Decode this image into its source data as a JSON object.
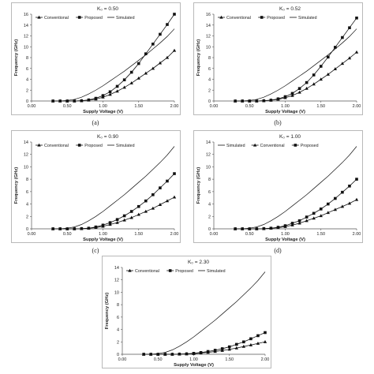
{
  "chart_data": [
    {
      "type": "line",
      "title": "K₀ = 0.50",
      "caption": "(a)",
      "xlabel": "Supply Voltage (V)",
      "ylabel": "Frequency (GHz)",
      "xlim": [
        0,
        2
      ],
      "ylim": [
        0,
        16
      ],
      "xticks": [
        "0.00",
        "0.50",
        "1.00",
        "1.50",
        "2.00"
      ],
      "yticks": [
        "0",
        "2",
        "4",
        "6",
        "8",
        "10",
        "12",
        "14",
        "16"
      ],
      "legend_position": "top-left",
      "series": [
        {
          "name": "Conventional",
          "marker": "triangle",
          "x": [
            0.3,
            0.4,
            0.5,
            0.6,
            0.7,
            0.8,
            0.9,
            1.0,
            1.1,
            1.2,
            1.3,
            1.4,
            1.5,
            1.6,
            1.7,
            1.8,
            1.9,
            2.0
          ],
          "y": [
            0,
            0,
            0,
            0,
            0.05,
            0.15,
            0.35,
            0.7,
            1.2,
            1.8,
            2.5,
            3.3,
            4.2,
            5.1,
            6.0,
            7.0,
            8.0,
            9.3
          ]
        },
        {
          "name": "Proposed",
          "marker": "square",
          "x": [
            0.3,
            0.4,
            0.5,
            0.6,
            0.7,
            0.8,
            0.9,
            1.0,
            1.1,
            1.2,
            1.3,
            1.4,
            1.5,
            1.6,
            1.7,
            1.8,
            1.9,
            2.0
          ],
          "y": [
            0,
            0,
            0,
            0,
            0.05,
            0.2,
            0.5,
            1.0,
            1.7,
            2.7,
            3.9,
            5.3,
            6.9,
            8.7,
            10.5,
            12.3,
            14.1,
            16.0
          ]
        },
        {
          "name": "Simulated",
          "marker": "none",
          "x": [
            0.3,
            0.4,
            0.5,
            0.6,
            0.7,
            0.8,
            0.9,
            1.0,
            1.1,
            1.2,
            1.3,
            1.4,
            1.5,
            1.6,
            1.7,
            1.8,
            1.9,
            2.0
          ],
          "y": [
            0,
            0,
            0.1,
            0.3,
            0.7,
            1.3,
            2.0,
            2.8,
            3.7,
            4.6,
            5.5,
            6.5,
            7.5,
            8.5,
            9.6,
            10.7,
            11.9,
            13.3
          ]
        }
      ]
    },
    {
      "type": "line",
      "title": "K₀ = 0.52",
      "caption": "(b)",
      "xlabel": "Supply Voltage (V)",
      "ylabel": "Frequency (GHz)",
      "xlim": [
        0,
        2
      ],
      "ylim": [
        0,
        16
      ],
      "xticks": [
        "0.00",
        "0.50",
        "1.00",
        "1.50",
        "2.00"
      ],
      "yticks": [
        "0",
        "2",
        "4",
        "6",
        "8",
        "10",
        "12",
        "14",
        "16"
      ],
      "legend_position": "top-left",
      "series": [
        {
          "name": "Conventional",
          "marker": "triangle",
          "x": [
            0.3,
            0.4,
            0.5,
            0.6,
            0.7,
            0.8,
            0.9,
            1.0,
            1.1,
            1.2,
            1.3,
            1.4,
            1.5,
            1.6,
            1.7,
            1.8,
            1.9,
            2.0
          ],
          "y": [
            0,
            0,
            0,
            0,
            0.05,
            0.15,
            0.3,
            0.6,
            1.0,
            1.6,
            2.3,
            3.1,
            4.0,
            4.9,
            5.9,
            6.9,
            7.9,
            9.0
          ]
        },
        {
          "name": "Proposed",
          "marker": "square",
          "x": [
            0.3,
            0.4,
            0.5,
            0.6,
            0.7,
            0.8,
            0.9,
            1.0,
            1.1,
            1.2,
            1.3,
            1.4,
            1.5,
            1.6,
            1.7,
            1.8,
            1.9,
            2.0
          ],
          "y": [
            0,
            0,
            0,
            0,
            0.05,
            0.15,
            0.4,
            0.8,
            1.4,
            2.3,
            3.4,
            4.8,
            6.4,
            8.1,
            9.9,
            11.7,
            13.5,
            15.3
          ]
        },
        {
          "name": "Simulated",
          "marker": "none",
          "x": [
            0.3,
            0.4,
            0.5,
            0.6,
            0.7,
            0.8,
            0.9,
            1.0,
            1.1,
            1.2,
            1.3,
            1.4,
            1.5,
            1.6,
            1.7,
            1.8,
            1.9,
            2.0
          ],
          "y": [
            0,
            0,
            0.1,
            0.3,
            0.7,
            1.3,
            2.0,
            2.8,
            3.7,
            4.6,
            5.5,
            6.5,
            7.5,
            8.5,
            9.6,
            10.7,
            11.9,
            13.3
          ]
        }
      ]
    },
    {
      "type": "line",
      "title": "K₀ = 0.90",
      "caption": "(c)",
      "xlabel": "Supply Voltage (V)",
      "ylabel": "Frequency (GHz)",
      "xlim": [
        0,
        2
      ],
      "ylim": [
        0,
        14
      ],
      "xticks": [
        "0.00",
        "0.50",
        "1.00",
        "1.50",
        "2.00"
      ],
      "yticks": [
        "0",
        "2",
        "4",
        "6",
        "8",
        "10",
        "12",
        "14"
      ],
      "legend_position": "top-left",
      "series": [
        {
          "name": "Conventional",
          "marker": "triangle",
          "x": [
            0.3,
            0.4,
            0.5,
            0.6,
            0.7,
            0.8,
            0.9,
            1.0,
            1.1,
            1.2,
            1.3,
            1.4,
            1.5,
            1.6,
            1.7,
            1.8,
            1.9,
            2.0
          ],
          "y": [
            0,
            0,
            0,
            0,
            0.02,
            0.08,
            0.2,
            0.4,
            0.7,
            1.0,
            1.4,
            1.8,
            2.3,
            2.8,
            3.3,
            3.9,
            4.5,
            5.1
          ]
        },
        {
          "name": "Proposed",
          "marker": "square",
          "x": [
            0.3,
            0.4,
            0.5,
            0.6,
            0.7,
            0.8,
            0.9,
            1.0,
            1.1,
            1.2,
            1.3,
            1.4,
            1.5,
            1.6,
            1.7,
            1.8,
            1.9,
            2.0
          ],
          "y": [
            0,
            0,
            0,
            0,
            0.03,
            0.1,
            0.3,
            0.6,
            1.0,
            1.5,
            2.1,
            2.8,
            3.6,
            4.5,
            5.5,
            6.6,
            7.7,
            8.9
          ]
        },
        {
          "name": "Simulated",
          "marker": "none",
          "x": [
            0.3,
            0.4,
            0.5,
            0.6,
            0.7,
            0.8,
            0.9,
            1.0,
            1.1,
            1.2,
            1.3,
            1.4,
            1.5,
            1.6,
            1.7,
            1.8,
            1.9,
            2.0
          ],
          "y": [
            0,
            0,
            0.1,
            0.3,
            0.7,
            1.3,
            2.0,
            2.8,
            3.7,
            4.6,
            5.5,
            6.5,
            7.5,
            8.5,
            9.6,
            10.7,
            11.9,
            13.3
          ]
        }
      ]
    },
    {
      "type": "line",
      "title": "K₀ = 1.00",
      "caption": "(d)",
      "xlabel": "Supply Voltage (V)",
      "ylabel": "Frequency (GHz)",
      "xlim": [
        0,
        2
      ],
      "ylim": [
        0,
        14
      ],
      "xticks": [
        "0.00",
        "0.50",
        "1.00",
        "1.50",
        "2.00"
      ],
      "yticks": [
        "0",
        "2",
        "4",
        "6",
        "8",
        "10",
        "12",
        "14"
      ],
      "legend_position": "top-left",
      "series": [
        {
          "name": "Simulated",
          "marker": "none",
          "x": [
            0.3,
            0.4,
            0.5,
            0.6,
            0.7,
            0.8,
            0.9,
            1.0,
            1.1,
            1.2,
            1.3,
            1.4,
            1.5,
            1.6,
            1.7,
            1.8,
            1.9,
            2.0
          ],
          "y": [
            0,
            0,
            0.1,
            0.3,
            0.7,
            1.3,
            2.0,
            2.8,
            3.7,
            4.6,
            5.5,
            6.5,
            7.5,
            8.5,
            9.6,
            10.7,
            11.9,
            13.3
          ]
        },
        {
          "name": "Conventional",
          "marker": "triangle",
          "x": [
            0.3,
            0.4,
            0.5,
            0.6,
            0.7,
            0.8,
            0.9,
            1.0,
            1.1,
            1.2,
            1.3,
            1.4,
            1.5,
            1.6,
            1.7,
            1.8,
            1.9,
            2.0
          ],
          "y": [
            0,
            0,
            0,
            0,
            0.02,
            0.07,
            0.18,
            0.35,
            0.6,
            0.9,
            1.3,
            1.7,
            2.1,
            2.6,
            3.1,
            3.6,
            4.1,
            4.7
          ]
        },
        {
          "name": "Proposed",
          "marker": "square",
          "x": [
            0.3,
            0.4,
            0.5,
            0.6,
            0.7,
            0.8,
            0.9,
            1.0,
            1.1,
            1.2,
            1.3,
            1.4,
            1.5,
            1.6,
            1.7,
            1.8,
            1.9,
            2.0
          ],
          "y": [
            0,
            0,
            0,
            0,
            0.03,
            0.1,
            0.25,
            0.5,
            0.9,
            1.3,
            1.9,
            2.5,
            3.2,
            4.0,
            4.9,
            5.9,
            6.9,
            8.0
          ]
        }
      ]
    },
    {
      "type": "line",
      "title": "K₀ = 2.30",
      "caption": "",
      "xlabel": "Supply Voltage (V)",
      "ylabel": "Frequency (GHz)",
      "xlim": [
        0,
        2
      ],
      "ylim": [
        0,
        14
      ],
      "xticks": [
        "0.00",
        "0.50",
        "1.00",
        "1.50",
        "2.00"
      ],
      "yticks": [
        "0",
        "2",
        "4",
        "6",
        "8",
        "10",
        "12",
        "14"
      ],
      "legend_position": "top-left",
      "series": [
        {
          "name": "Conventional",
          "marker": "triangle",
          "x": [
            0.3,
            0.4,
            0.5,
            0.6,
            0.7,
            0.8,
            0.9,
            1.0,
            1.1,
            1.2,
            1.3,
            1.4,
            1.5,
            1.6,
            1.7,
            1.8,
            1.9,
            2.0
          ],
          "y": [
            0,
            0,
            0,
            0,
            0,
            0.02,
            0.05,
            0.1,
            0.2,
            0.3,
            0.45,
            0.6,
            0.8,
            1.0,
            1.25,
            1.5,
            1.75,
            2.0
          ]
        },
        {
          "name": "Proposed",
          "marker": "square",
          "x": [
            0.3,
            0.4,
            0.5,
            0.6,
            0.7,
            0.8,
            0.9,
            1.0,
            1.1,
            1.2,
            1.3,
            1.4,
            1.5,
            1.6,
            1.7,
            1.8,
            1.9,
            2.0
          ],
          "y": [
            0,
            0,
            0,
            0,
            0,
            0.03,
            0.07,
            0.15,
            0.28,
            0.45,
            0.65,
            0.9,
            1.2,
            1.6,
            2.0,
            2.5,
            3.0,
            3.5
          ]
        },
        {
          "name": "Simulated",
          "marker": "none",
          "x": [
            0.3,
            0.4,
            0.5,
            0.6,
            0.7,
            0.8,
            0.9,
            1.0,
            1.1,
            1.2,
            1.3,
            1.4,
            1.5,
            1.6,
            1.7,
            1.8,
            1.9,
            2.0
          ],
          "y": [
            0,
            0,
            0.1,
            0.3,
            0.7,
            1.3,
            2.0,
            2.8,
            3.7,
            4.6,
            5.5,
            6.5,
            7.5,
            8.5,
            9.6,
            10.7,
            11.9,
            13.3
          ]
        }
      ]
    }
  ]
}
